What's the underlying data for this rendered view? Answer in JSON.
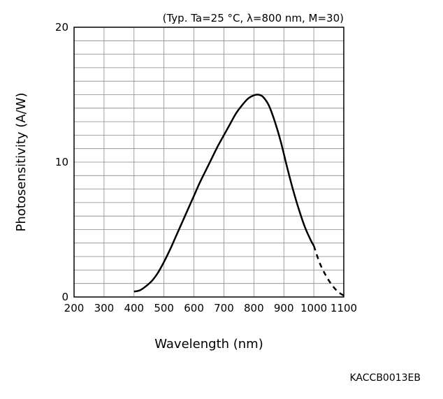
{
  "chart_data": {
    "type": "line",
    "title": "",
    "condition_note": "(Typ. Ta=25 °C, λ=800 nm, M=30)",
    "xlabel": "Wavelength (nm)",
    "ylabel": "Photosensitivity (A/W)",
    "xlim": [
      200,
      1100
    ],
    "ylim": [
      0,
      20
    ],
    "x_ticks": [
      200,
      300,
      400,
      500,
      600,
      700,
      800,
      900,
      1000,
      1100
    ],
    "x_tick_labels": [
      "200",
      "300",
      "400",
      "500",
      "600",
      "700",
      "800",
      "900",
      "1000",
      "1100"
    ],
    "y_ticks": [
      0,
      10,
      20
    ],
    "y_tick_labels": [
      "0",
      "10",
      "20"
    ],
    "grid": true,
    "grid_x_step": 100,
    "grid_y_step": 1,
    "legend": "none",
    "series": [
      {
        "line_style": "solid",
        "x": [
          400,
          420,
          440,
          460,
          480,
          500,
          520,
          540,
          560,
          580,
          600,
          620,
          640,
          660,
          680,
          700,
          720,
          740,
          760,
          780,
          800,
          815,
          830,
          850,
          870,
          890,
          910,
          930,
          950,
          970,
          990,
          1000
        ],
        "y": [
          0.4,
          0.5,
          0.8,
          1.2,
          1.8,
          2.6,
          3.5,
          4.5,
          5.5,
          6.5,
          7.5,
          8.5,
          9.4,
          10.3,
          11.2,
          12.0,
          12.8,
          13.6,
          14.2,
          14.7,
          14.95,
          15.0,
          14.85,
          14.2,
          13.0,
          11.5,
          9.7,
          8.0,
          6.5,
          5.2,
          4.2,
          3.8
        ]
      },
      {
        "line_style": "dashed",
        "x": [
          1000,
          1020,
          1040,
          1060,
          1080,
          1100
        ],
        "y": [
          3.8,
          2.5,
          1.6,
          0.9,
          0.4,
          0.1
        ]
      }
    ],
    "colors": {
      "line": "#000000",
      "grid": "#888888",
      "frame": "#000000",
      "background": "#ffffff"
    }
  },
  "caption": "KACCB0013EB"
}
